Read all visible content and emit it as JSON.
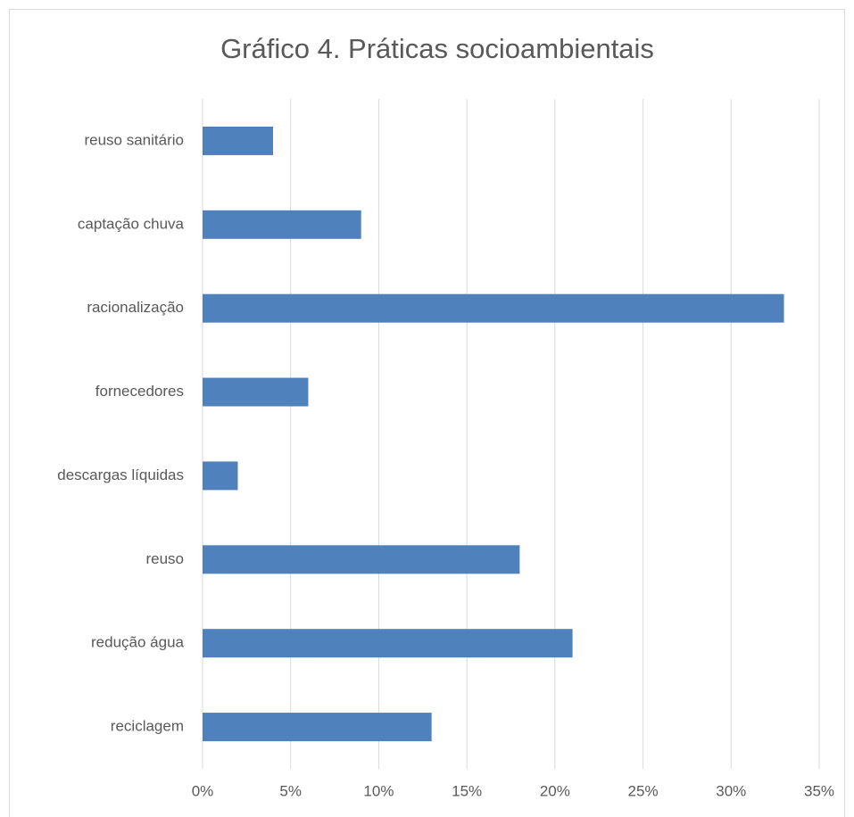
{
  "chart_data": {
    "type": "bar",
    "orientation": "horizontal",
    "title": "Gráfico 4. Práticas socioambientais",
    "categories": [
      "reuso sanitário",
      "captação chuva",
      "racionalização",
      "fornecedores",
      "descargas líquidas",
      "reuso",
      "redução água",
      "reciclagem"
    ],
    "values": [
      4,
      9,
      33,
      6,
      2,
      18,
      21,
      13
    ],
    "color": "#4f81bd",
    "xlim": [
      0,
      35
    ],
    "xticks": [
      {
        "value": 0,
        "label": "0%"
      },
      {
        "value": 5,
        "label": "5%"
      },
      {
        "value": 10,
        "label": "10%"
      },
      {
        "value": 15,
        "label": "15%"
      },
      {
        "value": 20,
        "label": "20%"
      },
      {
        "value": 25,
        "label": "25%"
      },
      {
        "value": 30,
        "label": "30%"
      },
      {
        "value": 35,
        "label": "35%"
      }
    ],
    "grid": true
  }
}
